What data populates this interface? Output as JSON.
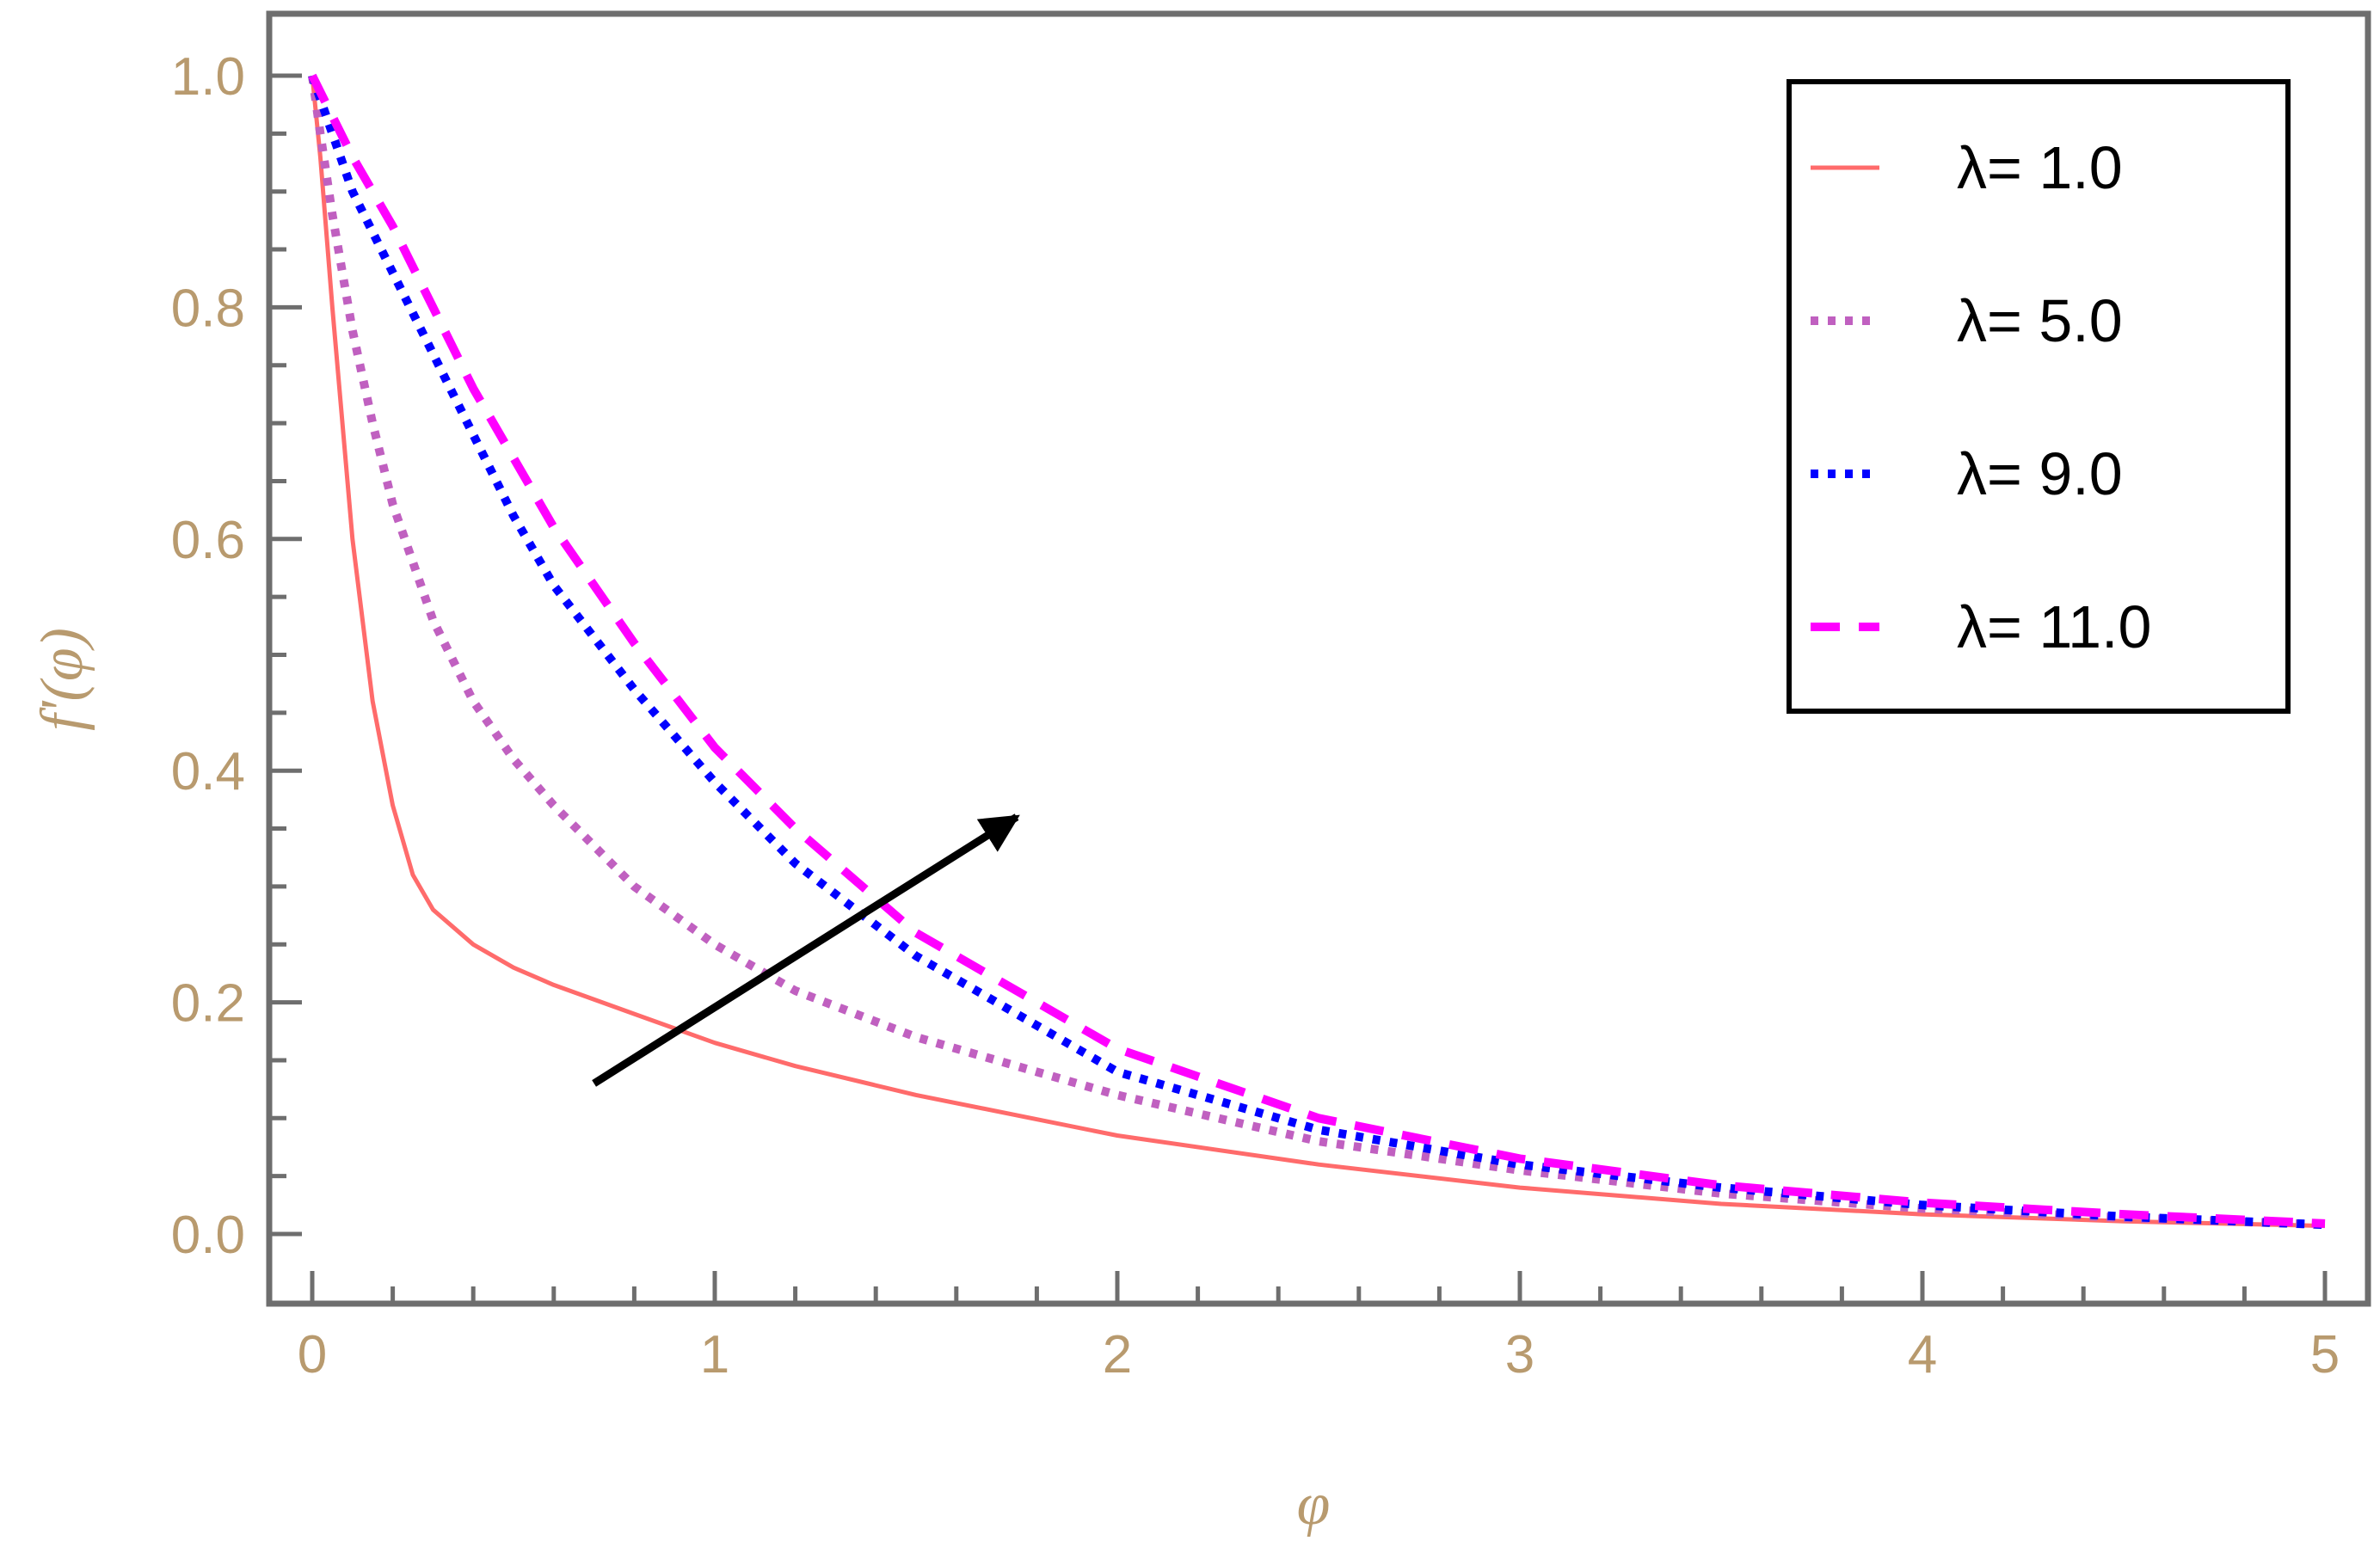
{
  "chart_data": {
    "type": "line",
    "xlabel": "φ",
    "ylabel": "f'(φ)",
    "xlim": [
      0,
      5
    ],
    "ylim": [
      0,
      1
    ],
    "x_ticks": [
      "0",
      "1",
      "2",
      "3",
      "4",
      "5"
    ],
    "y_ticks": [
      "0.0",
      "0.2",
      "0.4",
      "0.6",
      "0.8",
      "1.0"
    ],
    "grid": false,
    "legend_position": "top-right",
    "series": [
      {
        "name": "λ= 1.0",
        "color": "#ff6b6b",
        "style": "solid",
        "x": [
          0,
          0.02,
          0.05,
          0.1,
          0.15,
          0.2,
          0.25,
          0.3,
          0.4,
          0.5,
          0.6,
          0.8,
          1.0,
          1.2,
          1.5,
          2.0,
          2.5,
          3.0,
          3.5,
          4.0,
          4.5,
          5.0
        ],
        "y": [
          1.0,
          0.93,
          0.8,
          0.6,
          0.46,
          0.37,
          0.31,
          0.28,
          0.25,
          0.23,
          0.215,
          0.19,
          0.165,
          0.145,
          0.12,
          0.085,
          0.06,
          0.04,
          0.026,
          0.017,
          0.011,
          0.007
        ]
      },
      {
        "name": "λ= 5.0",
        "color": "#c060c0",
        "style": "dotted",
        "x": [
          0,
          0.02,
          0.05,
          0.1,
          0.15,
          0.2,
          0.3,
          0.4,
          0.5,
          0.6,
          0.8,
          1.0,
          1.2,
          1.5,
          2.0,
          2.5,
          3.0,
          3.5,
          4.0,
          4.5,
          5.0
        ],
        "y": [
          1.0,
          0.95,
          0.88,
          0.78,
          0.7,
          0.63,
          0.53,
          0.46,
          0.41,
          0.37,
          0.3,
          0.25,
          0.21,
          0.17,
          0.12,
          0.08,
          0.055,
          0.035,
          0.022,
          0.014,
          0.008
        ]
      },
      {
        "name": "λ= 9.0",
        "color": "#0000ff",
        "style": "dotted",
        "x": [
          0,
          0.1,
          0.2,
          0.3,
          0.4,
          0.5,
          0.6,
          0.8,
          1.0,
          1.2,
          1.5,
          2.0,
          2.5,
          3.0,
          3.5,
          4.0,
          4.5,
          5.0
        ],
        "y": [
          1.0,
          0.9,
          0.83,
          0.76,
          0.69,
          0.62,
          0.56,
          0.47,
          0.39,
          0.32,
          0.24,
          0.14,
          0.09,
          0.06,
          0.04,
          0.025,
          0.015,
          0.008
        ]
      },
      {
        "name": "λ= 11.0",
        "color": "#ff00ff",
        "style": "dashed",
        "x": [
          0,
          0.1,
          0.2,
          0.3,
          0.4,
          0.5,
          0.6,
          0.8,
          1.0,
          1.2,
          1.5,
          2.0,
          2.5,
          3.0,
          3.5,
          4.0,
          4.5,
          5.0
        ],
        "y": [
          1.0,
          0.93,
          0.87,
          0.8,
          0.73,
          0.67,
          0.61,
          0.51,
          0.42,
          0.35,
          0.26,
          0.16,
          0.1,
          0.065,
          0.042,
          0.027,
          0.017,
          0.009
        ]
      }
    ],
    "annotations": [
      {
        "type": "arrow",
        "from": [
          0.7,
          0.13
        ],
        "to": [
          1.75,
          0.36
        ]
      }
    ]
  }
}
